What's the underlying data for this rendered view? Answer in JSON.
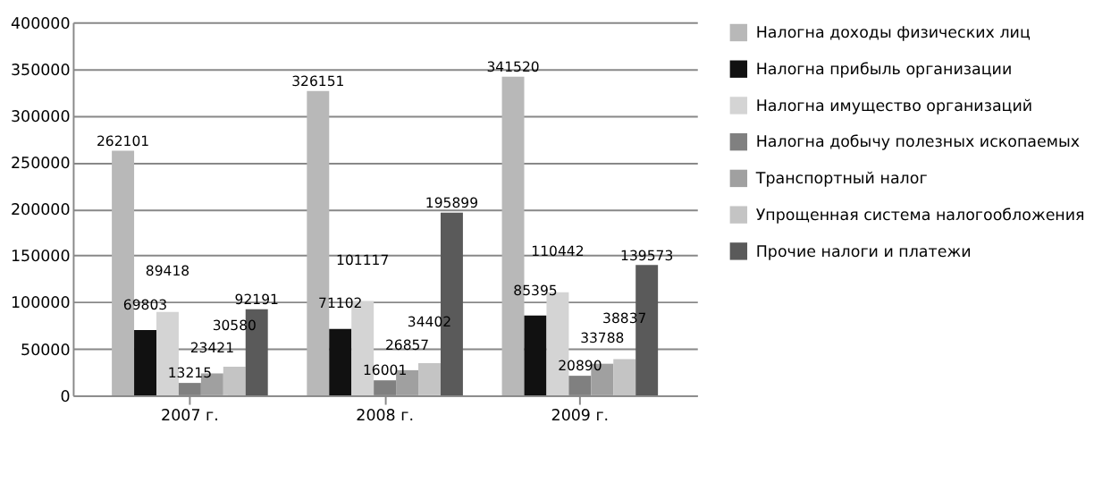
{
  "chart_data": {
    "type": "bar",
    "categories": [
      "2007 г.",
      "2008 г.",
      "2009 г."
    ],
    "series": [
      {
        "name": "Налогна доходы физических лиц",
        "color": "#b8b8b8",
        "values": [
          262101,
          326151,
          341520
        ]
      },
      {
        "name": "Налогна прибыль организации",
        "color": "#111111",
        "values": [
          69803,
          71102,
          85395
        ]
      },
      {
        "name": "Налогна имущество организаций",
        "color": "#d4d4d4",
        "values": [
          89418,
          101117,
          110442
        ]
      },
      {
        "name": "Налогна добычу полезных ископаемых",
        "color": "#808080",
        "values": [
          13215,
          16001,
          20890
        ]
      },
      {
        "name": "Транспортный налог",
        "color": "#a0a0a0",
        "values": [
          23421,
          26857,
          33788
        ]
      },
      {
        "name": "Упрощенная система налогообложения",
        "color": "#c4c4c4",
        "values": [
          30580,
          34402,
          38837
        ]
      },
      {
        "name": "Прочие налоги и платежи",
        "color": "#5a5a5a",
        "values": [
          92191,
          195899,
          139573
        ]
      }
    ],
    "ylim": [
      0,
      400000
    ],
    "yticks": [
      0,
      50000,
      100000,
      150000,
      200000,
      250000,
      300000,
      350000,
      400000
    ],
    "grid": "y",
    "legend": "right",
    "data_labels": true
  }
}
